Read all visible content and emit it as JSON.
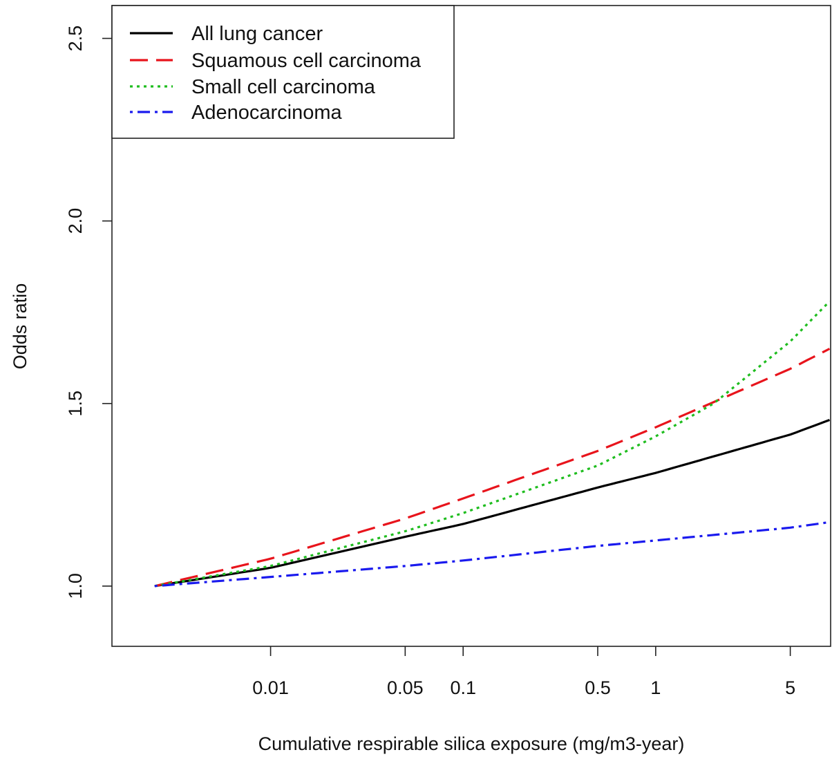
{
  "chart_data": {
    "type": "line",
    "xlabel": "Cumulative respirable silica exposure (mg/m3-year)",
    "ylabel": "Odds ratio",
    "x_scale": "log",
    "xlim": [
      0.0015,
      8.1
    ],
    "ylim": [
      0.835,
      2.59
    ],
    "x_ticks": [
      {
        "value": 0.01,
        "label": "0.01"
      },
      {
        "value": 0.05,
        "label": "0.05"
      },
      {
        "value": 0.1,
        "label": "0.1"
      },
      {
        "value": 0.5,
        "label": "0.5"
      },
      {
        "value": 1,
        "label": "1"
      },
      {
        "value": 5,
        "label": "5"
      }
    ],
    "y_ticks": [
      {
        "value": 1.0,
        "label": "1.0"
      },
      {
        "value": 1.5,
        "label": "1.5"
      },
      {
        "value": 2.0,
        "label": "2.0"
      },
      {
        "value": 2.5,
        "label": "2.5"
      }
    ],
    "grid": false,
    "legend_position": "top-left",
    "series": [
      {
        "name": "All lung cancer",
        "color": "#000000",
        "dash": "solid",
        "x": [
          0.0025,
          0.01,
          0.05,
          0.1,
          0.5,
          1,
          5,
          8
        ],
        "y": [
          1.0,
          1.05,
          1.135,
          1.17,
          1.27,
          1.31,
          1.415,
          1.455
        ]
      },
      {
        "name": "Squamous cell carcinoma",
        "color": "#e8141c",
        "dash": "long-dash",
        "x": [
          0.0025,
          0.01,
          0.05,
          0.1,
          0.5,
          1,
          5,
          8
        ],
        "y": [
          1.0,
          1.075,
          1.185,
          1.24,
          1.37,
          1.435,
          1.595,
          1.65
        ]
      },
      {
        "name": "Small cell carcinoma",
        "color": "#1fbd1f",
        "dash": "dotted",
        "x": [
          0.0025,
          0.01,
          0.05,
          0.1,
          0.5,
          1,
          2,
          5,
          8
        ],
        "y": [
          1.0,
          1.055,
          1.15,
          1.2,
          1.33,
          1.41,
          1.5,
          1.67,
          1.78
        ]
      },
      {
        "name": "Adenocarcinoma",
        "color": "#1a1aee",
        "dash": "dot-dash",
        "x": [
          0.0025,
          0.01,
          0.05,
          0.1,
          0.5,
          1,
          5,
          8
        ],
        "y": [
          1.0,
          1.025,
          1.055,
          1.07,
          1.11,
          1.125,
          1.16,
          1.175
        ]
      }
    ]
  }
}
